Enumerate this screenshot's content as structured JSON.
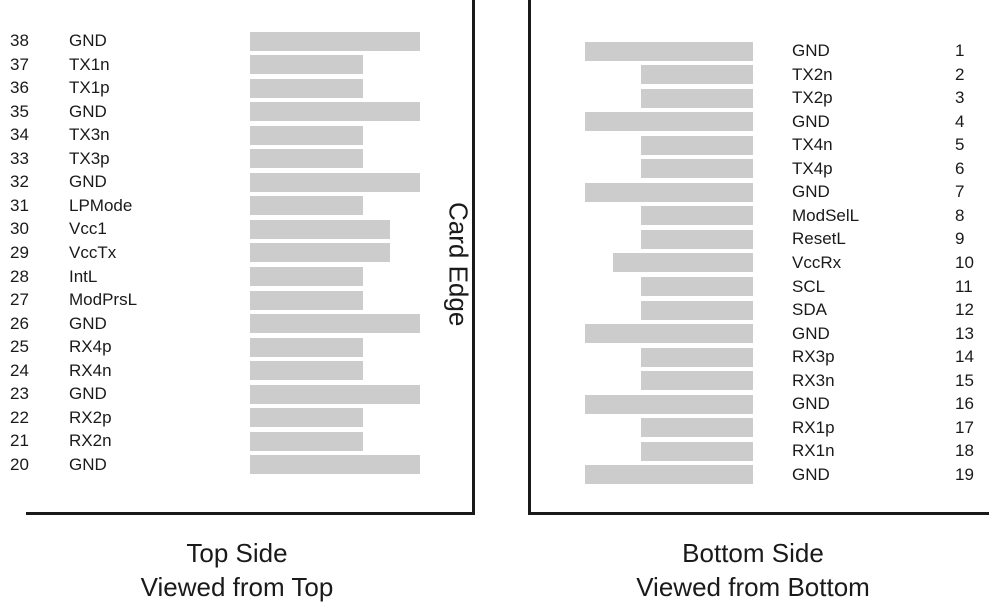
{
  "edge_label": "Card Edge",
  "top_side": {
    "caption_line1": "Top Side",
    "caption_line2": "Viewed from Top",
    "pins": [
      {
        "num": "38",
        "name": "GND",
        "bar": "long"
      },
      {
        "num": "37",
        "name": "TX1n",
        "bar": "short"
      },
      {
        "num": "36",
        "name": "TX1p",
        "bar": "short"
      },
      {
        "num": "35",
        "name": "GND",
        "bar": "long"
      },
      {
        "num": "34",
        "name": "TX3n",
        "bar": "short"
      },
      {
        "num": "33",
        "name": "TX3p",
        "bar": "short"
      },
      {
        "num": "32",
        "name": "GND",
        "bar": "long"
      },
      {
        "num": "31",
        "name": "LPMode",
        "bar": "short"
      },
      {
        "num": "30",
        "name": "Vcc1",
        "bar": "medium"
      },
      {
        "num": "29",
        "name": "VccTx",
        "bar": "medium"
      },
      {
        "num": "28",
        "name": "IntL",
        "bar": "short"
      },
      {
        "num": "27",
        "name": "ModPrsL",
        "bar": "short"
      },
      {
        "num": "26",
        "name": "GND",
        "bar": "long"
      },
      {
        "num": "25",
        "name": "RX4p",
        "bar": "short"
      },
      {
        "num": "24",
        "name": "RX4n",
        "bar": "short"
      },
      {
        "num": "23",
        "name": "GND",
        "bar": "long"
      },
      {
        "num": "22",
        "name": "RX2p",
        "bar": "short"
      },
      {
        "num": "21",
        "name": "RX2n",
        "bar": "short"
      },
      {
        "num": "20",
        "name": "GND",
        "bar": "long"
      }
    ]
  },
  "bottom_side": {
    "caption_line1": "Bottom Side",
    "caption_line2": "Viewed from Bottom",
    "pins": [
      {
        "num": "1",
        "name": "GND",
        "bar": "long"
      },
      {
        "num": "2",
        "name": "TX2n",
        "bar": "short"
      },
      {
        "num": "3",
        "name": "TX2p",
        "bar": "short"
      },
      {
        "num": "4",
        "name": "GND",
        "bar": "long"
      },
      {
        "num": "5",
        "name": "TX4n",
        "bar": "short"
      },
      {
        "num": "6",
        "name": "TX4p",
        "bar": "short"
      },
      {
        "num": "7",
        "name": "GND",
        "bar": "long"
      },
      {
        "num": "8",
        "name": "ModSelL",
        "bar": "short"
      },
      {
        "num": "9",
        "name": "ResetL",
        "bar": "short"
      },
      {
        "num": "10",
        "name": "VccRx",
        "bar": "medium"
      },
      {
        "num": "11",
        "name": "SCL",
        "bar": "short"
      },
      {
        "num": "12",
        "name": "SDA",
        "bar": "short"
      },
      {
        "num": "13",
        "name": "GND",
        "bar": "long"
      },
      {
        "num": "14",
        "name": "RX3p",
        "bar": "short"
      },
      {
        "num": "15",
        "name": "RX3n",
        "bar": "short"
      },
      {
        "num": "16",
        "name": "GND",
        "bar": "long"
      },
      {
        "num": "17",
        "name": "RX1p",
        "bar": "short"
      },
      {
        "num": "18",
        "name": "RX1n",
        "bar": "short"
      },
      {
        "num": "19",
        "name": "GND",
        "bar": "long"
      }
    ]
  }
}
